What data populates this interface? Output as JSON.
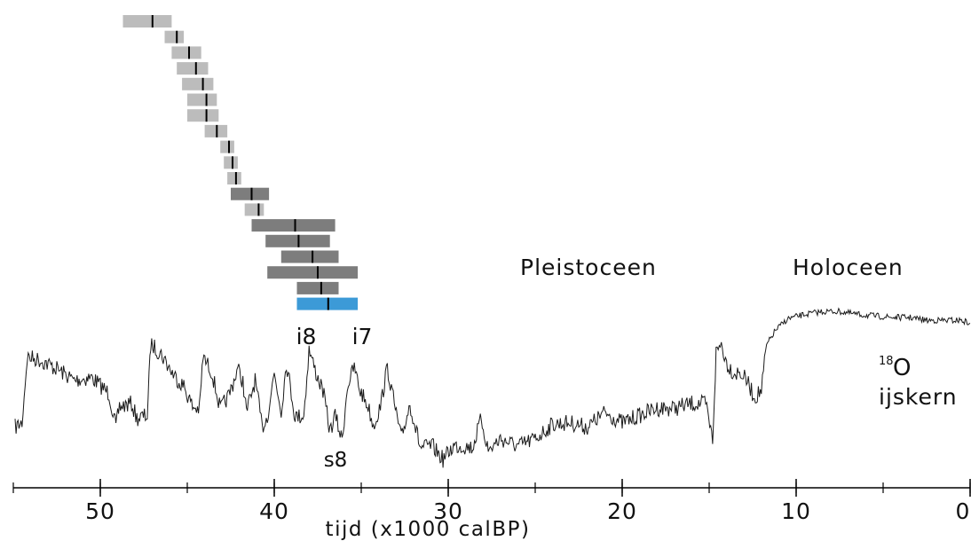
{
  "chart_data": {
    "type": "line",
    "xlabel": "tijd (x1000 calBP)",
    "xlim": [
      55,
      0
    ],
    "x_ticks": [
      "50",
      "40",
      "30",
      "20",
      "10",
      "0"
    ],
    "x_tick_values": [
      50,
      40,
      30,
      20,
      10,
      0
    ],
    "grid": false,
    "period_labels": [
      "Pleistoceen",
      "Holoceen"
    ],
    "series_label": {
      "sup": "18",
      "main": "O",
      "sub": "ijskern"
    },
    "annotations": {
      "i8": "i8",
      "i7": "i7",
      "s8": "s8"
    },
    "annotation_ages": {
      "i8": 38.2,
      "i7": 35.3,
      "s8": 36.8
    },
    "colors": {
      "light": "#bcbcbc",
      "dark": "#7d7d7d",
      "highlight": "#3c9ad7",
      "line": "#1a1a1a"
    },
    "date_ranges": [
      {
        "median": 47.0,
        "low": 45.9,
        "high": 48.7,
        "shade": "light"
      },
      {
        "median": 45.6,
        "low": 45.2,
        "high": 46.3,
        "shade": "light"
      },
      {
        "median": 44.9,
        "low": 44.2,
        "high": 45.9,
        "shade": "light"
      },
      {
        "median": 44.5,
        "low": 43.8,
        "high": 45.6,
        "shade": "light"
      },
      {
        "median": 44.1,
        "low": 43.5,
        "high": 45.3,
        "shade": "light"
      },
      {
        "median": 43.9,
        "low": 43.3,
        "high": 45.0,
        "shade": "light"
      },
      {
        "median": 43.9,
        "low": 43.2,
        "high": 45.0,
        "shade": "light"
      },
      {
        "median": 43.3,
        "low": 42.7,
        "high": 44.0,
        "shade": "light"
      },
      {
        "median": 42.6,
        "low": 42.3,
        "high": 43.1,
        "shade": "light"
      },
      {
        "median": 42.4,
        "low": 42.1,
        "high": 42.9,
        "shade": "light"
      },
      {
        "median": 42.2,
        "low": 41.9,
        "high": 42.7,
        "shade": "light"
      },
      {
        "median": 41.3,
        "low": 40.3,
        "high": 42.5,
        "shade": "dark"
      },
      {
        "median": 40.9,
        "low": 40.6,
        "high": 41.7,
        "shade": "light"
      },
      {
        "median": 38.8,
        "low": 36.5,
        "high": 41.3,
        "shade": "dark"
      },
      {
        "median": 38.6,
        "low": 36.8,
        "high": 40.5,
        "shade": "dark"
      },
      {
        "median": 37.8,
        "low": 36.3,
        "high": 39.6,
        "shade": "dark"
      },
      {
        "median": 37.5,
        "low": 35.2,
        "high": 40.4,
        "shade": "dark"
      },
      {
        "median": 37.3,
        "low": 36.3,
        "high": 38.7,
        "shade": "dark"
      },
      {
        "median": 36.9,
        "low": 35.2,
        "high": 38.7,
        "shade": "highlight"
      }
    ],
    "series": [
      {
        "values": [
          [
            54.9,
            -42.6
          ],
          [
            54.5,
            -42.3
          ],
          [
            54.2,
            -37.8
          ],
          [
            53.5,
            -38.0
          ],
          [
            52.5,
            -38.6
          ],
          [
            51.5,
            -39.4
          ],
          [
            50.5,
            -39.2
          ],
          [
            49.5,
            -40.3
          ],
          [
            49.1,
            -42.6
          ],
          [
            48.9,
            -41.2
          ],
          [
            48.2,
            -41.0
          ],
          [
            47.9,
            -42.0
          ],
          [
            47.3,
            -41.8
          ],
          [
            47.1,
            -36.9
          ],
          [
            46.5,
            -37.6
          ],
          [
            45.8,
            -39.0
          ],
          [
            45.2,
            -39.8
          ],
          [
            44.7,
            -41.2
          ],
          [
            44.3,
            -41.4
          ],
          [
            44.1,
            -37.8
          ],
          [
            43.6,
            -38.8
          ],
          [
            43.1,
            -41.4
          ],
          [
            42.6,
            -40.4
          ],
          [
            42.1,
            -38.6
          ],
          [
            41.8,
            -39.5
          ],
          [
            41.6,
            -41.6
          ],
          [
            41.1,
            -39.4
          ],
          [
            40.7,
            -42.6
          ],
          [
            40.4,
            -41.9
          ],
          [
            40.0,
            -38.9
          ],
          [
            39.6,
            -41.5
          ],
          [
            39.3,
            -38.2
          ],
          [
            38.8,
            -41.9
          ],
          [
            38.3,
            -41.8
          ],
          [
            38.0,
            -37.3
          ],
          [
            37.6,
            -38.9
          ],
          [
            37.2,
            -40.1
          ],
          [
            36.8,
            -42.9
          ],
          [
            36.5,
            -41.8
          ],
          [
            36.1,
            -43.5
          ],
          [
            35.8,
            -39.8
          ],
          [
            35.4,
            -38.5
          ],
          [
            35.1,
            -40.0
          ],
          [
            34.6,
            -41.2
          ],
          [
            34.3,
            -42.5
          ],
          [
            33.9,
            -41.2
          ],
          [
            33.5,
            -38.5
          ],
          [
            33.1,
            -41.0
          ],
          [
            32.7,
            -43.4
          ],
          [
            32.2,
            -41.0
          ],
          [
            31.6,
            -44.0
          ],
          [
            30.9,
            -43.9
          ],
          [
            30.3,
            -44.8
          ],
          [
            29.7,
            -43.9
          ],
          [
            29.1,
            -43.9
          ],
          [
            28.6,
            -44.0
          ],
          [
            28.1,
            -42.0
          ],
          [
            27.7,
            -44.2
          ],
          [
            27.0,
            -43.4
          ],
          [
            26.0,
            -43.9
          ],
          [
            25.0,
            -43.4
          ],
          [
            24.0,
            -42.4
          ],
          [
            23.0,
            -42.3
          ],
          [
            22.0,
            -42.6
          ],
          [
            21.0,
            -41.6
          ],
          [
            20.0,
            -42.3
          ],
          [
            19.0,
            -41.8
          ],
          [
            18.0,
            -41.3
          ],
          [
            17.0,
            -41.3
          ],
          [
            16.0,
            -41.0
          ],
          [
            15.2,
            -41.0
          ],
          [
            14.8,
            -43.5
          ],
          [
            14.6,
            -37.5
          ],
          [
            14.3,
            -36.9
          ],
          [
            14.0,
            -38.2
          ],
          [
            13.6,
            -38.9
          ],
          [
            13.2,
            -38.9
          ],
          [
            12.8,
            -39.5
          ],
          [
            12.4,
            -40.6
          ],
          [
            12.0,
            -40.1
          ],
          [
            11.7,
            -37.0
          ],
          [
            11.2,
            -36.0
          ],
          [
            10.5,
            -35.2
          ],
          [
            9.5,
            -34.9
          ],
          [
            8.5,
            -34.7
          ],
          [
            7.5,
            -34.7
          ],
          [
            6.5,
            -34.9
          ],
          [
            5.5,
            -35.0
          ],
          [
            4.5,
            -35.1
          ],
          [
            3.5,
            -35.1
          ],
          [
            2.5,
            -35.3
          ],
          [
            1.5,
            -35.3
          ],
          [
            0.5,
            -35.3
          ],
          [
            0.0,
            -35.5
          ]
        ]
      }
    ]
  }
}
